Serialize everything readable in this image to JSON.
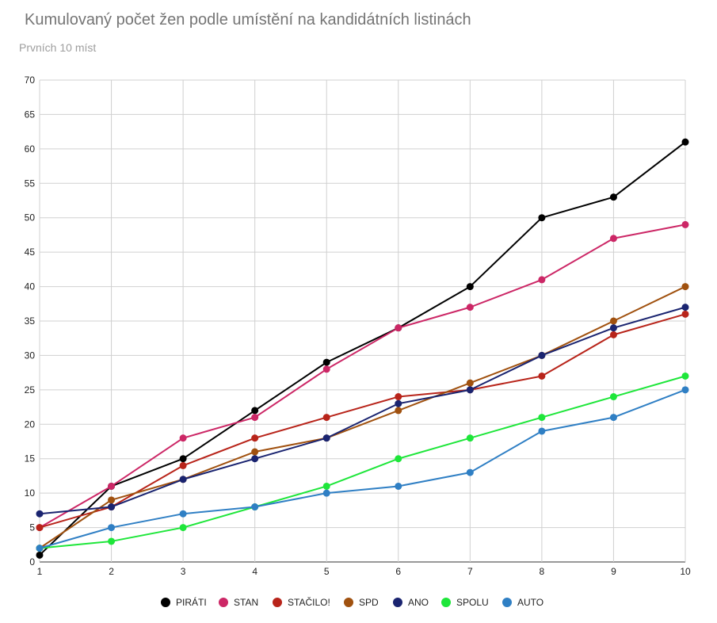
{
  "chart_data": {
    "type": "line",
    "title": "Kumulovaný počet žen podle umístění na kandidátních listinách",
    "subtitle": "Prvních 10 míst",
    "x": [
      1,
      2,
      3,
      4,
      5,
      6,
      7,
      8,
      9,
      10
    ],
    "xlim": [
      1,
      10
    ],
    "ylim": [
      0,
      70
    ],
    "ytick_step": 5,
    "grid": true,
    "legend_position": "bottom",
    "series": [
      {
        "name": "PIRÁTI",
        "color": "#000000",
        "values": [
          1,
          11,
          15,
          22,
          29,
          34,
          40,
          50,
          53,
          61
        ]
      },
      {
        "name": "STAN",
        "color": "#cc2766",
        "values": [
          5,
          11,
          18,
          21,
          28,
          34,
          37,
          41,
          47,
          49
        ]
      },
      {
        "name": "STAČILO!",
        "color": "#b8241a",
        "values": [
          5,
          8,
          14,
          18,
          21,
          24,
          25,
          27,
          33,
          36
        ]
      },
      {
        "name": "SPD",
        "color": "#a0510f",
        "values": [
          2,
          9,
          12,
          16,
          18,
          22,
          26,
          30,
          35,
          40
        ]
      },
      {
        "name": "ANO",
        "color": "#1a2470",
        "values": [
          7,
          8,
          12,
          15,
          18,
          23,
          25,
          30,
          34,
          37
        ]
      },
      {
        "name": "SPOLU",
        "color": "#1ee63a",
        "values": [
          2,
          3,
          5,
          8,
          11,
          15,
          18,
          21,
          24,
          27
        ]
      },
      {
        "name": "AUTO",
        "color": "#2f7fc4",
        "values": [
          2,
          5,
          7,
          8,
          10,
          11,
          13,
          19,
          21,
          25
        ]
      }
    ]
  }
}
